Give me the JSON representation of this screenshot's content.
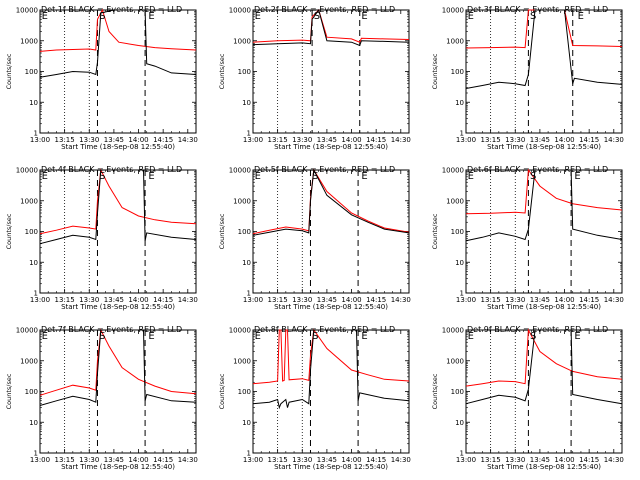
{
  "figure": {
    "xlabel": "Start Time (18-Sep-08 12:55:40)",
    "ylabel": "Counts/sec",
    "xticks": [
      "13:00",
      "13:15",
      "13:30",
      "13:45",
      "14:00",
      "14:15",
      "14:30"
    ],
    "yticks": [
      "1",
      "10",
      "100",
      "1000",
      "10000"
    ],
    "colors": {
      "events": "#000000",
      "lld": "#ff0000"
    },
    "markers": {
      "attenuator_in": "E",
      "start": "S"
    }
  },
  "chart_data": [
    {
      "type": "line",
      "title": "Det 1f BLACK = Events, RED = LLD",
      "xlim": [
        "13:00",
        "14:35"
      ],
      "ylim": [
        1,
        10000
      ],
      "yscale": "log",
      "vlines_dotted": [
        "13:15",
        "13:30"
      ],
      "vlines_dashed": [
        "13:35",
        "14:04"
      ],
      "labels": [
        {
          "text": "E",
          "x": "13:01"
        },
        {
          "text": "S",
          "x": "13:36"
        },
        {
          "text": "E",
          "x": "14:06"
        }
      ],
      "series": [
        {
          "name": "Events",
          "color": "#000000",
          "x": [
            "13:00",
            "13:10",
            "13:20",
            "13:30",
            "13:34",
            "13:35",
            "13:37",
            "13:45",
            "14:00",
            "14:04",
            "14:05",
            "14:10",
            "14:20",
            "14:35"
          ],
          "values": [
            65,
            80,
            100,
            95,
            80,
            200,
            8000,
            10000,
            10000,
            10000,
            180,
            150,
            90,
            80
          ]
        },
        {
          "name": "LLD",
          "color": "#ff0000",
          "x": [
            "13:00",
            "13:10",
            "13:20",
            "13:30",
            "13:34",
            "13:35",
            "13:38",
            "13:42",
            "13:48",
            "14:00",
            "14:10",
            "14:20",
            "14:35"
          ],
          "values": [
            450,
            500,
            520,
            540,
            500,
            5000,
            10000,
            2000,
            900,
            700,
            600,
            550,
            500
          ]
        }
      ]
    },
    {
      "type": "line",
      "title": "Det 2f BLACK = Events, RED = LLD",
      "xlim": [
        "13:00",
        "14:35"
      ],
      "ylim": [
        1,
        10000
      ],
      "yscale": "log",
      "vlines_dotted": [
        "13:15",
        "13:30"
      ],
      "vlines_dashed": [
        "13:36",
        "14:05"
      ],
      "labels": [
        {
          "text": "E",
          "x": "13:01"
        },
        {
          "text": "S",
          "x": "13:37"
        },
        {
          "text": "E",
          "x": "14:06"
        }
      ],
      "series": [
        {
          "name": "Events",
          "color": "#000000",
          "x": [
            "13:00",
            "13:15",
            "13:30",
            "13:35",
            "13:36",
            "13:40",
            "13:45",
            "14:00",
            "14:05",
            "14:06",
            "14:20",
            "14:35"
          ],
          "values": [
            750,
            800,
            850,
            800,
            5000,
            10000,
            1000,
            900,
            700,
            1000,
            950,
            900
          ]
        },
        {
          "name": "LLD",
          "color": "#ff0000",
          "x": [
            "13:00",
            "13:15",
            "13:30",
            "13:35",
            "13:36",
            "13:40",
            "13:45",
            "14:00",
            "14:05",
            "14:06",
            "14:20",
            "14:35"
          ],
          "values": [
            900,
            1000,
            1050,
            1000,
            6000,
            10000,
            1300,
            1150,
            900,
            1200,
            1150,
            1100
          ]
        }
      ]
    },
    {
      "type": "line",
      "title": "Det 3f BLACK = Events, RED = LLD",
      "xlim": [
        "13:00",
        "14:35"
      ],
      "ylim": [
        1,
        10000
      ],
      "yscale": "log",
      "vlines_dotted": [
        "13:15",
        "13:30"
      ],
      "vlines_dashed": [
        "13:38",
        "14:05"
      ],
      "labels": [
        {
          "text": "E",
          "x": "13:01"
        },
        {
          "text": "S",
          "x": "13:39"
        },
        {
          "text": "E",
          "x": "14:08"
        }
      ],
      "series": [
        {
          "name": "Events",
          "color": "#000000",
          "x": [
            "13:00",
            "13:10",
            "13:20",
            "13:30",
            "13:36",
            "13:38",
            "13:42",
            "14:00",
            "14:05",
            "14:06",
            "14:20",
            "14:35"
          ],
          "values": [
            28,
            35,
            45,
            40,
            35,
            80,
            10000,
            10000,
            40,
            60,
            45,
            38
          ]
        },
        {
          "name": "LLD",
          "color": "#ff0000",
          "x": [
            "13:00",
            "13:15",
            "13:30",
            "13:36",
            "13:38",
            "14:00",
            "14:05",
            "14:20",
            "14:35"
          ],
          "values": [
            580,
            600,
            620,
            600,
            10000,
            10000,
            700,
            680,
            650
          ]
        }
      ]
    },
    {
      "type": "line",
      "title": "Det 4f BLACK = Events, RED = LLD",
      "xlim": [
        "13:00",
        "14:35"
      ],
      "ylim": [
        1,
        10000
      ],
      "yscale": "log",
      "vlines_dotted": [
        "13:15",
        "13:30"
      ],
      "vlines_dashed": [
        "13:35",
        "14:04"
      ],
      "labels": [
        {
          "text": "E",
          "x": "13:01"
        },
        {
          "text": "S",
          "x": "13:36"
        },
        {
          "text": "E",
          "x": "14:06"
        }
      ],
      "series": [
        {
          "name": "Events",
          "color": "#000000",
          "x": [
            "13:00",
            "13:10",
            "13:20",
            "13:30",
            "13:34",
            "13:35",
            "13:37",
            "13:50",
            "14:03",
            "14:04",
            "14:05",
            "14:20",
            "14:35"
          ],
          "values": [
            40,
            55,
            75,
            65,
            55,
            400,
            10000,
            10000,
            10000,
            50,
            90,
            65,
            55
          ]
        },
        {
          "name": "LLD",
          "color": "#ff0000",
          "x": [
            "13:00",
            "13:10",
            "13:20",
            "13:30",
            "13:34",
            "13:35",
            "13:37",
            "13:42",
            "13:50",
            "14:00",
            "14:10",
            "14:20",
            "14:35"
          ],
          "values": [
            85,
            110,
            150,
            130,
            120,
            1000,
            10000,
            3000,
            600,
            320,
            240,
            200,
            180
          ]
        }
      ]
    },
    {
      "type": "line",
      "title": "Det 5f BLACK = Events, RED = LLD",
      "xlim": [
        "13:00",
        "14:35"
      ],
      "ylim": [
        1,
        10000
      ],
      "yscale": "log",
      "vlines_dotted": [
        "13:15",
        "13:30"
      ],
      "vlines_dashed": [
        "13:35",
        "14:04"
      ],
      "labels": [
        {
          "text": "E",
          "x": "13:01"
        },
        {
          "text": "S",
          "x": "13:36"
        },
        {
          "text": "E",
          "x": "14:06"
        }
      ],
      "series": [
        {
          "name": "Events",
          "color": "#000000",
          "x": [
            "13:00",
            "13:10",
            "13:20",
            "13:30",
            "13:34",
            "13:35",
            "13:37",
            "13:45",
            "14:00",
            "14:10",
            "14:20",
            "14:35"
          ],
          "values": [
            75,
            95,
            120,
            105,
            90,
            1000,
            10000,
            1500,
            350,
            200,
            120,
            90
          ]
        },
        {
          "name": "LLD",
          "color": "#ff0000",
          "x": [
            "13:00",
            "13:10",
            "13:20",
            "13:30",
            "13:34",
            "13:35",
            "13:37",
            "13:45",
            "14:00",
            "14:10",
            "14:20",
            "14:35"
          ],
          "values": [
            85,
            110,
            140,
            120,
            105,
            1200,
            10000,
            2000,
            400,
            220,
            130,
            95
          ]
        }
      ]
    },
    {
      "type": "line",
      "title": "Det 6f BLACK = Events, RED = LLD",
      "xlim": [
        "13:00",
        "14:35"
      ],
      "ylim": [
        1,
        10000
      ],
      "yscale": "log",
      "vlines_dotted": [
        "13:15",
        "13:30"
      ],
      "vlines_dashed": [
        "13:38",
        "14:04"
      ],
      "labels": [
        {
          "text": "E",
          "x": "13:01"
        },
        {
          "text": "S",
          "x": "13:39"
        },
        {
          "text": "E",
          "x": "14:06"
        }
      ],
      "series": [
        {
          "name": "Events",
          "color": "#000000",
          "x": [
            "13:00",
            "13:10",
            "13:20",
            "13:30",
            "13:36",
            "13:38",
            "13:42",
            "14:00",
            "14:04",
            "14:05",
            "14:20",
            "14:35"
          ],
          "values": [
            50,
            65,
            90,
            70,
            55,
            120,
            10000,
            10000,
            10000,
            120,
            75,
            55
          ]
        },
        {
          "name": "LLD",
          "color": "#ff0000",
          "x": [
            "13:00",
            "13:15",
            "13:30",
            "13:36",
            "13:38",
            "13:45",
            "13:55",
            "14:05",
            "14:20",
            "14:35"
          ],
          "values": [
            380,
            390,
            420,
            400,
            10000,
            3000,
            1200,
            800,
            600,
            500
          ]
        }
      ]
    },
    {
      "type": "line",
      "title": "Det 7f BLACK = Events, RED = LLD",
      "xlim": [
        "13:00",
        "14:35"
      ],
      "ylim": [
        1,
        10000
      ],
      "yscale": "log",
      "vlines_dotted": [
        "13:15",
        "13:30"
      ],
      "vlines_dashed": [
        "13:35",
        "14:04"
      ],
      "labels": [
        {
          "text": "E",
          "x": "13:01"
        },
        {
          "text": "S",
          "x": "13:36"
        },
        {
          "text": "E",
          "x": "14:06"
        }
      ],
      "series": [
        {
          "name": "Events",
          "color": "#000000",
          "x": [
            "13:00",
            "13:10",
            "13:20",
            "13:30",
            "13:34",
            "13:35",
            "13:37",
            "13:50",
            "14:03",
            "14:04",
            "14:05",
            "14:20",
            "14:35"
          ],
          "values": [
            35,
            50,
            70,
            55,
            45,
            400,
            10000,
            10000,
            10000,
            50,
            80,
            50,
            45
          ]
        },
        {
          "name": "LLD",
          "color": "#ff0000",
          "x": [
            "13:00",
            "13:10",
            "13:20",
            "13:30",
            "13:34",
            "13:35",
            "13:37",
            "13:42",
            "13:50",
            "14:00",
            "14:10",
            "14:20",
            "14:35"
          ],
          "values": [
            75,
            110,
            160,
            130,
            110,
            1000,
            10000,
            3000,
            600,
            250,
            150,
            100,
            85
          ]
        }
      ]
    },
    {
      "type": "line",
      "title": "Det 8f BLACK = Events, RED = LLD",
      "xlim": [
        "13:00",
        "14:35"
      ],
      "ylim": [
        1,
        10000
      ],
      "yscale": "log",
      "vlines_dotted": [
        "13:15",
        "13:30"
      ],
      "vlines_dashed": [
        "13:35",
        "14:04"
      ],
      "labels": [
        {
          "text": "E",
          "x": "13:01"
        },
        {
          "text": "S",
          "x": "13:36"
        },
        {
          "text": "E",
          "x": "14:06"
        }
      ],
      "series": [
        {
          "name": "Events",
          "color": "#000000",
          "x": [
            "13:00",
            "13:10",
            "13:15",
            "13:16",
            "13:17",
            "13:20",
            "13:21",
            "13:22",
            "13:30",
            "13:34",
            "13:35",
            "13:37",
            "13:50",
            "14:03",
            "14:04",
            "14:05",
            "14:20",
            "14:35"
          ],
          "values": [
            40,
            45,
            55,
            30,
            40,
            55,
            30,
            45,
            55,
            40,
            500,
            10000,
            10000,
            10000,
            50,
            90,
            60,
            50
          ]
        },
        {
          "name": "LLD",
          "color": "#ff0000",
          "x": [
            "13:00",
            "13:10",
            "13:15",
            "13:16",
            "13:17",
            "13:18",
            "13:19",
            "13:20",
            "13:21",
            "13:22",
            "13:30",
            "13:34",
            "13:35",
            "13:37",
            "13:45",
            "14:00",
            "14:10",
            "14:20",
            "14:35"
          ],
          "values": [
            180,
            200,
            220,
            10000,
            10000,
            220,
            230,
            10000,
            10000,
            240,
            260,
            230,
            1500,
            10000,
            2500,
            500,
            350,
            250,
            220
          ]
        }
      ]
    },
    {
      "type": "line",
      "title": "Det 9f BLACK = Events, RED = LLD",
      "xlim": [
        "13:00",
        "14:35"
      ],
      "ylim": [
        1,
        10000
      ],
      "yscale": "log",
      "vlines_dotted": [
        "13:15",
        "13:30"
      ],
      "vlines_dashed": [
        "13:38",
        "14:04"
      ],
      "labels": [
        {
          "text": "E",
          "x": "13:01"
        },
        {
          "text": "S",
          "x": "13:39"
        },
        {
          "text": "E",
          "x": "14:06"
        }
      ],
      "series": [
        {
          "name": "Events",
          "color": "#000000",
          "x": [
            "13:00",
            "13:10",
            "13:20",
            "13:30",
            "13:36",
            "13:38",
            "13:42",
            "14:00",
            "14:04",
            "14:05",
            "14:20",
            "14:35"
          ],
          "values": [
            40,
            55,
            75,
            65,
            50,
            120,
            10000,
            10000,
            10000,
            80,
            55,
            40
          ]
        },
        {
          "name": "LLD",
          "color": "#ff0000",
          "x": [
            "13:00",
            "13:10",
            "13:20",
            "13:30",
            "13:36",
            "13:38",
            "13:45",
            "13:55",
            "14:05",
            "14:20",
            "14:35"
          ],
          "values": [
            150,
            180,
            220,
            210,
            180,
            10000,
            2000,
            800,
            450,
            300,
            250
          ]
        }
      ]
    }
  ]
}
